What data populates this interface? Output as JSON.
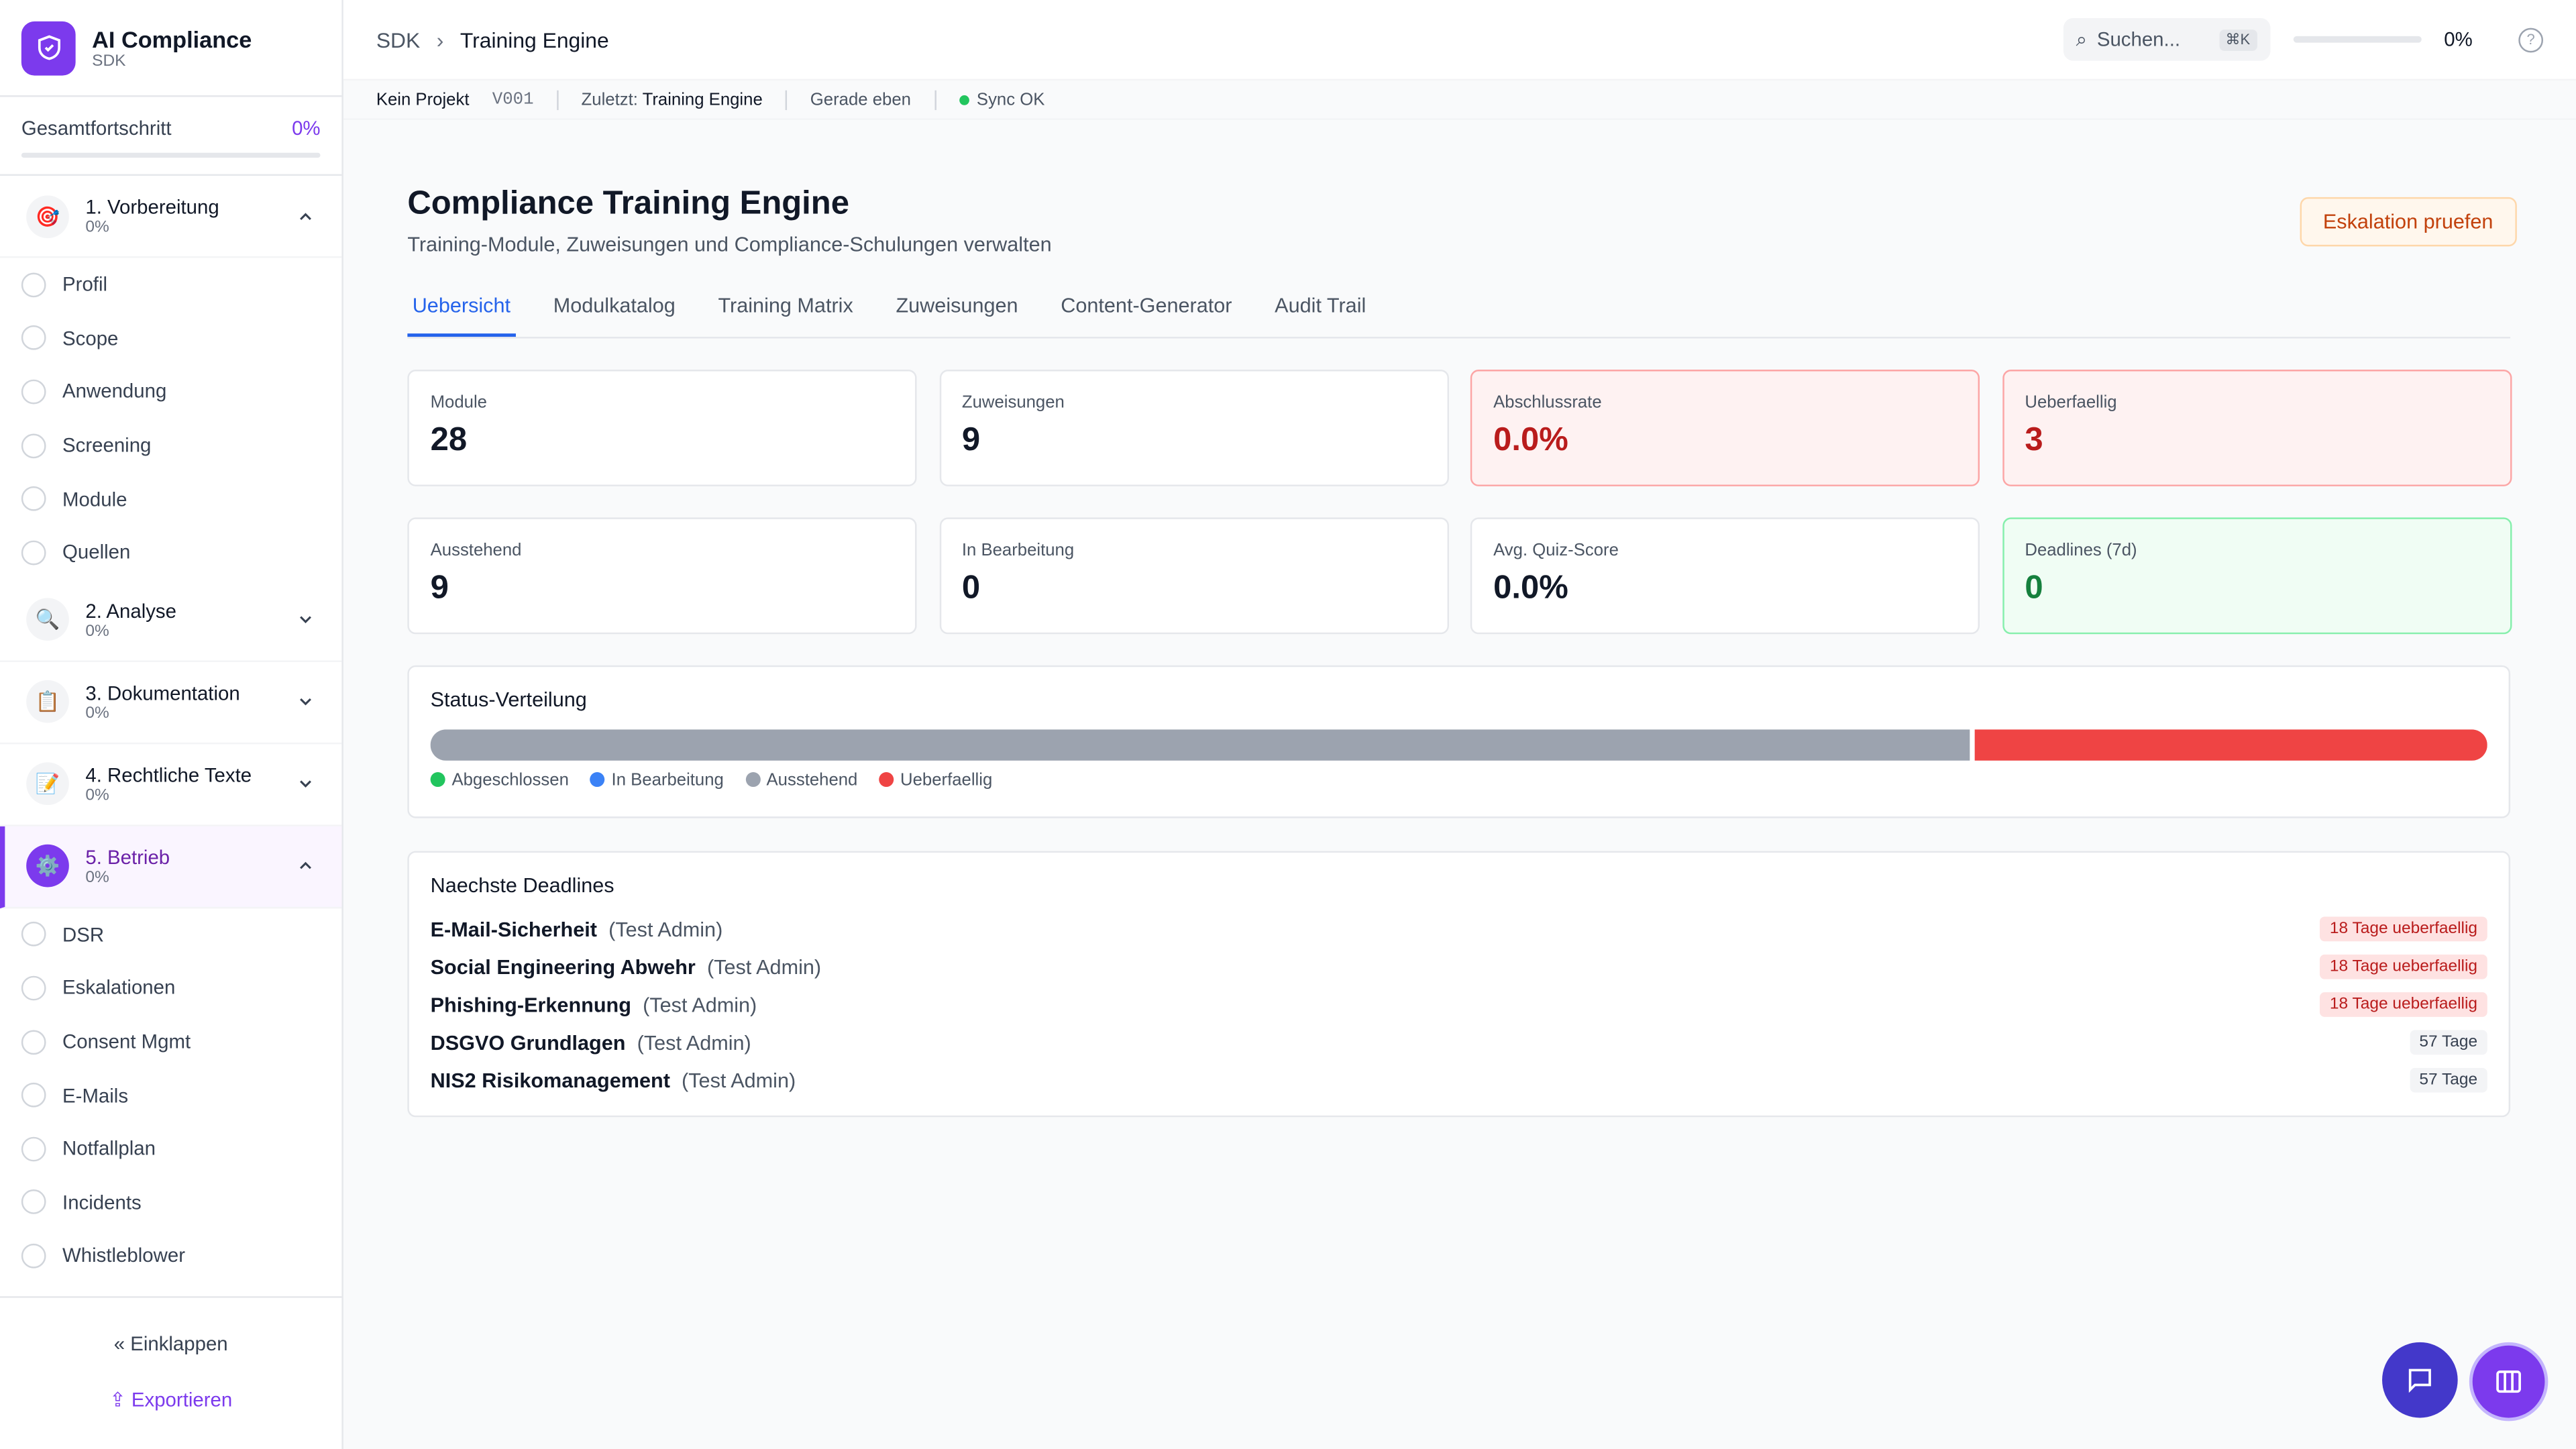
{
  "sidebar": {
    "brand": "AI Compliance",
    "brand_sub": "SDK",
    "progress_label": "Gesamtfortschritt",
    "progress_value": "0%",
    "sections": [
      {
        "icon": "🎯",
        "title": "1. Vorbereitung",
        "progress": "0%",
        "items": [
          "Profil",
          "Scope",
          "Anwendung",
          "Screening",
          "Module",
          "Quellen"
        ]
      },
      {
        "icon": "🔍",
        "title": "2. Analyse",
        "progress": "0%",
        "items": []
      },
      {
        "icon": "📋",
        "title": "3. Dokumentation",
        "progress": "0%",
        "items": []
      },
      {
        "icon": "📝",
        "title": "4. Rechtliche Texte",
        "progress": "0%",
        "items": []
      },
      {
        "icon": "⚙️",
        "title": "5. Betrieb",
        "progress": "0%",
        "items": [
          "DSR",
          "Eskalationen",
          "Consent Mgmt",
          "E-Mails",
          "Notfallplan",
          "Incidents",
          "Whistleblower"
        ]
      }
    ],
    "collapse": "Einklappen",
    "export": "Exportieren"
  },
  "topbar": {
    "breadcrumb": [
      "SDK",
      "Training Engine"
    ],
    "search": "Suchen...",
    "shortcut": "⌘K",
    "progress": "0%"
  },
  "statusbar": {
    "project": "Kein Projekt",
    "version": "V001",
    "last_label": "Zuletzt:",
    "last_value": "Training Engine",
    "time": "Gerade eben",
    "sync": "Sync OK"
  },
  "page": {
    "title": "Compliance Training Engine",
    "subtitle": "Training-Module, Zuweisungen und Compliance-Schulungen verwalten",
    "action": "Eskalation pruefen",
    "tabs": [
      "Uebersicht",
      "Modulkatalog",
      "Training Matrix",
      "Zuweisungen",
      "Content-Generator",
      "Audit Trail"
    ]
  },
  "stats": [
    {
      "label": "Module",
      "value": 28,
      "tone": "neutral"
    },
    {
      "label": "Zuweisungen",
      "value": 9,
      "tone": "neutral"
    },
    {
      "label": "Abschlussrate",
      "value": "0.0%",
      "tone": "danger"
    },
    {
      "label": "Ueberfaellig",
      "value": 3,
      "tone": "danger"
    },
    {
      "label": "Ausstehend",
      "value": 9,
      "tone": "neutral"
    },
    {
      "label": "In Bearbeitung",
      "value": 0,
      "tone": "neutral"
    },
    {
      "label": "Avg. Quiz-Score",
      "value": "0.0%",
      "tone": "neutral"
    },
    {
      "label": "Deadlines (7d)",
      "value": 0,
      "tone": "success"
    }
  ],
  "distribution": {
    "title": "Status-Verteilung",
    "legend": [
      {
        "name": "Abgeschlossen",
        "color": "#22c55e"
      },
      {
        "name": "In Bearbeitung",
        "color": "#3b82f6"
      },
      {
        "name": "Ausstehend",
        "color": "#9ca3af"
      },
      {
        "name": "Ueberfaellig",
        "color": "#ef4444"
      }
    ]
  },
  "deadlines": {
    "title": "Naechste Deadlines",
    "rows": [
      {
        "module": "E-Mail-Sicherheit",
        "user": "(Test Admin)",
        "badge": "18 Tage ueberfaellig",
        "overdue": true
      },
      {
        "module": "Social Engineering Abwehr",
        "user": "(Test Admin)",
        "badge": "18 Tage ueberfaellig",
        "overdue": true
      },
      {
        "module": "Phishing-Erkennung",
        "user": "(Test Admin)",
        "badge": "18 Tage ueberfaellig",
        "overdue": true
      },
      {
        "module": "DSGVO Grundlagen",
        "user": "(Test Admin)",
        "badge": "57 Tage",
        "overdue": false
      },
      {
        "module": "NIS2 Risikomanagement",
        "user": "(Test Admin)",
        "badge": "57 Tage",
        "overdue": false
      }
    ]
  }
}
